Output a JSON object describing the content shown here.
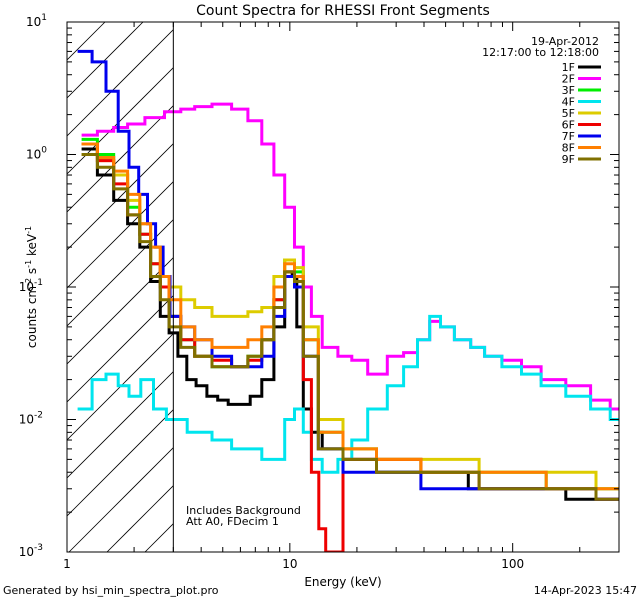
{
  "chart_data": {
    "type": "line",
    "title": "Count Spectra for RHESSI Front Segments",
    "xlabel": "Energy (keV)",
    "ylabel_parts": [
      "counts cm",
      "-2",
      " s",
      "-1",
      " keV",
      "-1"
    ],
    "xscale": "log",
    "yscale": "log",
    "xlim": [
      1,
      300
    ],
    "ylim": [
      0.001,
      10
    ],
    "x_ticks": [
      {
        "value": 1,
        "label": "1"
      },
      {
        "value": 10,
        "label": "10"
      },
      {
        "value": 100,
        "label": "100"
      }
    ],
    "y_ticks": [
      {
        "value": 10,
        "base": "10",
        "exp": "1"
      },
      {
        "value": 1,
        "base": "10",
        "exp": "0"
      },
      {
        "value": 0.1,
        "base": "10",
        "exp": "-1"
      },
      {
        "value": 0.01,
        "base": "10",
        "exp": "-2"
      },
      {
        "value": 0.001,
        "base": "10",
        "exp": "-3"
      }
    ],
    "shaded_region": {
      "x_from": 1,
      "x_to": 3,
      "style": "diagonal hatching"
    },
    "date": "19-Apr-2012",
    "time_range": "12:17:00 to 12:18:00",
    "annotations": [
      "Includes Background",
      "Att A0, FDecim 1"
    ],
    "series": [
      {
        "name": "1F",
        "color": "#000000",
        "x": [
          1.25,
          1.5,
          1.75,
          2,
          2.25,
          2.5,
          2.75,
          3,
          3.3,
          3.6,
          4,
          4.5,
          5,
          5.6,
          6.3,
          7,
          8,
          9,
          10,
          10.5,
          11,
          12,
          13,
          15,
          20,
          30,
          50,
          80,
          100,
          150,
          200,
          280
        ],
        "y": [
          1.1,
          0.7,
          0.45,
          0.3,
          0.2,
          0.11,
          0.06,
          0.045,
          0.03,
          0.02,
          0.018,
          0.015,
          0.014,
          0.013,
          0.013,
          0.015,
          0.02,
          0.05,
          0.13,
          0.12,
          0.05,
          0.012,
          0.008,
          0.006,
          0.005,
          0.004,
          0.004,
          0.003,
          0.003,
          0.003,
          0.0025,
          0.0025
        ]
      },
      {
        "name": "2F",
        "color": "#ff00ff",
        "x": [
          1.25,
          1.5,
          1.75,
          2,
          2.5,
          3,
          3.5,
          4,
          5,
          6,
          7,
          8,
          9,
          10,
          11,
          12,
          13,
          15,
          18,
          20,
          25,
          30,
          35,
          40,
          45,
          50,
          60,
          70,
          80,
          100,
          120,
          150,
          200,
          250,
          300
        ],
        "y": [
          1.4,
          1.5,
          1.6,
          1.7,
          1.9,
          2.1,
          2.2,
          2.3,
          2.4,
          2.2,
          1.8,
          1.2,
          0.7,
          0.4,
          0.2,
          0.1,
          0.06,
          0.035,
          0.03,
          0.028,
          0.022,
          0.03,
          0.032,
          0.04,
          0.055,
          0.05,
          0.04,
          0.035,
          0.03,
          0.028,
          0.025,
          0.02,
          0.018,
          0.014,
          0.012
        ]
      },
      {
        "name": "3F",
        "color": "#00ee00",
        "x": [
          1.25,
          1.5,
          1.75,
          2,
          2.25,
          2.5,
          2.75,
          3,
          3.5,
          4,
          5,
          6,
          7,
          8,
          9,
          10,
          11,
          12,
          15,
          20,
          30,
          50,
          100,
          200,
          280
        ],
        "y": [
          1.3,
          1.0,
          0.7,
          0.4,
          0.25,
          0.15,
          0.1,
          0.06,
          0.04,
          0.03,
          0.025,
          0.025,
          0.03,
          0.04,
          0.08,
          0.16,
          0.13,
          0.04,
          0.008,
          0.006,
          0.005,
          0.004,
          0.004,
          0.003,
          0.003
        ]
      },
      {
        "name": "4F",
        "color": "#00e5ee",
        "x": [
          1.2,
          1.4,
          1.6,
          1.8,
          2,
          2.3,
          2.6,
          3,
          4,
          5,
          6,
          7,
          8,
          9,
          10,
          11,
          12,
          13,
          15,
          18,
          20,
          25,
          30,
          35,
          40,
          45,
          50,
          60,
          70,
          80,
          100,
          120,
          150,
          200,
          250,
          300
        ],
        "y": [
          0.012,
          0.02,
          0.022,
          0.018,
          0.015,
          0.02,
          0.012,
          0.01,
          0.008,
          0.007,
          0.006,
          0.006,
          0.005,
          0.005,
          0.01,
          0.012,
          0.008,
          0.005,
          0.004,
          0.005,
          0.007,
          0.012,
          0.018,
          0.025,
          0.04,
          0.06,
          0.05,
          0.04,
          0.035,
          0.03,
          0.025,
          0.022,
          0.018,
          0.015,
          0.012,
          0.01
        ]
      },
      {
        "name": "5F",
        "color": "#ddcc00",
        "x": [
          1.25,
          1.5,
          1.75,
          2,
          2.25,
          2.5,
          2.75,
          3,
          3.5,
          4,
          5,
          6,
          7,
          8,
          9,
          10,
          11,
          12,
          15,
          20,
          30,
          50,
          100,
          200,
          280
        ],
        "y": [
          1.0,
          0.9,
          0.7,
          0.45,
          0.3,
          0.2,
          0.12,
          0.1,
          0.08,
          0.07,
          0.06,
          0.06,
          0.065,
          0.07,
          0.12,
          0.16,
          0.14,
          0.05,
          0.01,
          0.006,
          0.005,
          0.005,
          0.004,
          0.004,
          0.003
        ]
      },
      {
        "name": "6F",
        "color": "#ee0000",
        "x": [
          1.25,
          1.5,
          1.75,
          2,
          2.25,
          2.5,
          2.75,
          3,
          3.5,
          4,
          5,
          6,
          7,
          8,
          9,
          10,
          11,
          12,
          13,
          14,
          15,
          20,
          30,
          50,
          100,
          200,
          280
        ],
        "y": [
          1.2,
          0.9,
          0.6,
          0.35,
          0.25,
          0.15,
          0.1,
          0.06,
          0.04,
          0.03,
          0.028,
          0.025,
          0.028,
          0.04,
          0.08,
          0.13,
          0.1,
          0.02,
          0.004,
          0.0015,
          0.001,
          0.005,
          0.005,
          0.004,
          0.003,
          0.003,
          0.0025
        ]
      },
      {
        "name": "7F",
        "color": "#0000ee",
        "x": [
          1.2,
          1.4,
          1.6,
          1.8,
          2,
          2.2,
          2.4,
          2.6,
          2.8,
          3,
          3.5,
          4,
          5,
          6,
          7,
          8,
          9,
          10,
          11,
          12,
          15,
          20,
          30,
          50,
          100,
          200,
          280
        ],
        "y": [
          6,
          5,
          3,
          1.5,
          0.8,
          0.5,
          0.3,
          0.2,
          0.12,
          0.06,
          0.05,
          0.04,
          0.03,
          0.025,
          0.025,
          0.03,
          0.06,
          0.12,
          0.1,
          0.03,
          0.006,
          0.004,
          0.004,
          0.003,
          0.003,
          0.003,
          0.0025
        ]
      },
      {
        "name": "8F",
        "color": "#ff7f00",
        "x": [
          1.25,
          1.5,
          1.75,
          2,
          2.25,
          2.5,
          2.75,
          3,
          3.5,
          4,
          5,
          6,
          7,
          8,
          9,
          10,
          11,
          12,
          15,
          20,
          30,
          50,
          100,
          200,
          280
        ],
        "y": [
          1.2,
          0.95,
          0.75,
          0.5,
          0.3,
          0.2,
          0.12,
          0.08,
          0.05,
          0.04,
          0.035,
          0.035,
          0.04,
          0.05,
          0.1,
          0.15,
          0.12,
          0.04,
          0.008,
          0.006,
          0.005,
          0.004,
          0.004,
          0.003,
          0.003
        ]
      },
      {
        "name": "9F",
        "color": "#807000",
        "x": [
          1.25,
          1.5,
          1.75,
          2,
          2.25,
          2.5,
          2.75,
          3,
          3.5,
          4,
          5,
          6,
          7,
          8,
          9,
          10,
          11,
          12,
          15,
          20,
          30,
          50,
          100,
          200,
          280
        ],
        "y": [
          1.0,
          0.8,
          0.55,
          0.35,
          0.22,
          0.12,
          0.08,
          0.05,
          0.035,
          0.03,
          0.025,
          0.025,
          0.03,
          0.04,
          0.07,
          0.13,
          0.11,
          0.03,
          0.006,
          0.005,
          0.004,
          0.004,
          0.003,
          0.003,
          0.0025
        ]
      }
    ]
  },
  "footer": {
    "left": "Generated by hsi_min_spectra_plot.pro",
    "right": "14-Apr-2023 15:47"
  }
}
